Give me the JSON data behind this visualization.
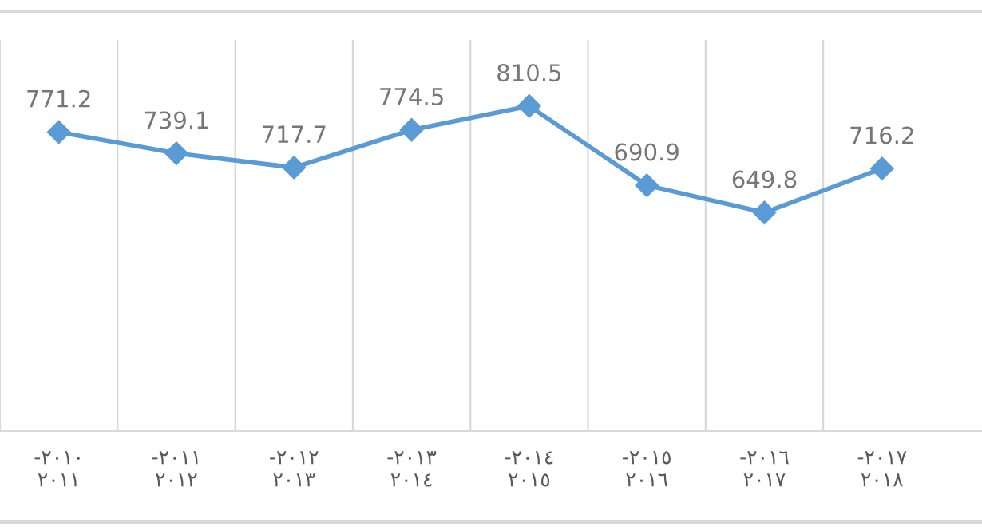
{
  "chart_data": {
    "type": "line",
    "categories": [
      "-٢٠١٠\n٢٠١١",
      "-٢٠١١\n٢٠١٢",
      "-٢٠١٢\n٢٠١٣",
      "-٢٠١٣\n٢٠١٤",
      "-٢٠١٤\n٢٠١٥",
      "-٢٠١٥\n٢٠١٦",
      "-٢٠١٦\n٢٠١٧",
      "-٢٠١٧\n٢٠١٨"
    ],
    "series": [
      {
        "color": "#5b9bd5",
        "values": [
          771.2,
          739.1,
          717.7,
          774.5,
          810.5,
          690.9,
          649.8,
          716.2
        ]
      }
    ],
    "data_labels": true,
    "marker": "diamond",
    "line_style": "solid",
    "grid": "x",
    "legend": false
  }
}
